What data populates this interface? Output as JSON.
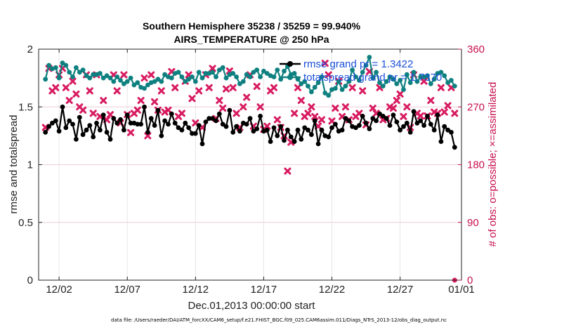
{
  "chart_data": {
    "type": "line",
    "title": "Southern Hemisphere 35238 / 35259 = 99.940%",
    "subtitle": "AIRS_TEMPERATURE @ 250 hPa",
    "xlabel": "Dec.01,2013 00:00:00 start",
    "ylabel": "rmse and totalspread",
    "y2label": "# of obs: o=possible; ×=assimilated",
    "footnote": "data file: /Users/raeder/DAI/ATM_forcXX/CAM6_setup/f.e21.FHIST_BGC.f09_025.CAM6assim.011/Diags_NTrS_2013-12/obs_diag_output.nc",
    "xlim": [
      0.5,
      31.5
    ],
    "ylim": [
      0,
      2
    ],
    "y2lim": [
      0,
      360
    ],
    "x_tick_values": [
      2,
      7,
      12,
      17,
      22,
      27,
      32
    ],
    "x_tick_labels": [
      "12/02",
      "12/07",
      "12/12",
      "12/17",
      "12/22",
      "12/27",
      "01/01"
    ],
    "y_tick_labels": [
      "0",
      "0.5",
      "1",
      "1.5",
      "2"
    ],
    "y2_tick_labels": [
      "0",
      "90",
      "180",
      "270",
      "360"
    ],
    "legend_position": "top-right",
    "colors": {
      "rmse": "#000000",
      "spread": "#0f8080",
      "obs": "#d81b60",
      "grid": "#e6e6e6",
      "rgrid": "#f2c9d6"
    },
    "x": [
      1.0,
      1.25,
      1.5,
      1.75,
      2.0,
      2.25,
      2.5,
      2.75,
      3.0,
      3.25,
      3.5,
      3.75,
      4.0,
      4.25,
      4.5,
      4.75,
      5.0,
      5.25,
      5.5,
      5.75,
      6.0,
      6.25,
      6.5,
      6.75,
      7.0,
      7.25,
      7.5,
      7.75,
      8.0,
      8.25,
      8.5,
      8.75,
      9.0,
      9.25,
      9.5,
      9.75,
      10.0,
      10.25,
      10.5,
      10.75,
      11.0,
      11.25,
      11.5,
      11.75,
      12.0,
      12.25,
      12.5,
      12.75,
      13.0,
      13.25,
      13.5,
      13.75,
      14.0,
      14.25,
      14.5,
      14.75,
      15.0,
      15.25,
      15.5,
      15.75,
      16.0,
      16.25,
      16.5,
      16.75,
      17.0,
      17.25,
      17.5,
      17.75,
      18.0,
      18.25,
      18.5,
      18.75,
      19.0,
      19.25,
      19.5,
      19.75,
      20.0,
      20.25,
      20.5,
      20.75,
      21.0,
      21.25,
      21.5,
      21.75,
      22.0,
      22.25,
      22.5,
      22.75,
      23.0,
      23.25,
      23.5,
      23.75,
      24.0,
      24.25,
      24.5,
      24.75,
      25.0,
      25.25,
      25.5,
      25.75,
      26.0,
      26.25,
      26.5,
      26.75,
      27.0,
      27.25,
      27.5,
      27.75,
      28.0,
      28.25,
      28.5,
      28.75,
      29.0,
      29.25,
      29.5,
      29.75,
      30.0,
      30.25,
      30.5,
      30.75,
      31.0
    ],
    "series": [
      {
        "name": "rmse",
        "legend_label": "rmse grand pr = 1.3422",
        "values": [
          1.28,
          1.33,
          1.36,
          1.38,
          1.29,
          1.5,
          1.32,
          1.38,
          1.35,
          1.22,
          1.41,
          1.26,
          1.3,
          1.34,
          1.24,
          1.36,
          1.3,
          1.43,
          1.28,
          1.22,
          1.4,
          1.36,
          1.39,
          1.3,
          1.43,
          1.36,
          1.36,
          1.35,
          1.35,
          1.5,
          1.28,
          1.4,
          1.34,
          1.47,
          1.25,
          1.38,
          1.35,
          1.44,
          1.36,
          1.32,
          1.3,
          1.36,
          1.32,
          1.27,
          1.27,
          1.34,
          1.18,
          1.37,
          1.4,
          1.4,
          1.38,
          1.44,
          1.35,
          1.33,
          1.47,
          1.28,
          1.33,
          1.29,
          1.36,
          1.35,
          1.4,
          1.29,
          1.31,
          1.42,
          1.29,
          1.3,
          1.2,
          1.32,
          1.25,
          1.33,
          1.21,
          1.3,
          1.24,
          1.2,
          1.3,
          1.22,
          1.32,
          1.3,
          1.26,
          1.38,
          1.18,
          1.3,
          1.25,
          1.24,
          1.32,
          1.35,
          1.29,
          1.3,
          1.4,
          1.38,
          1.33,
          1.32,
          1.34,
          1.42,
          1.36,
          1.31,
          1.4,
          1.38,
          1.44,
          1.42,
          1.4,
          1.34,
          1.43,
          1.37,
          1.3,
          1.33,
          1.36,
          1.28,
          1.46,
          1.36,
          1.38,
          1.34,
          1.42,
          1.35,
          1.3,
          1.43,
          1.2,
          1.33,
          1.3,
          1.28,
          1.15
        ]
      },
      {
        "name": "totalspread",
        "legend_label": "totalspread grand pr = 1.7370",
        "values": [
          1.74,
          1.86,
          1.83,
          1.84,
          1.75,
          1.88,
          1.86,
          1.8,
          1.76,
          1.84,
          1.8,
          1.82,
          1.77,
          1.75,
          1.78,
          1.78,
          1.79,
          1.75,
          1.77,
          1.75,
          1.72,
          1.76,
          1.73,
          1.7,
          1.72,
          1.75,
          1.69,
          1.71,
          1.67,
          1.66,
          1.69,
          1.71,
          1.72,
          1.74,
          1.72,
          1.78,
          1.76,
          1.75,
          1.79,
          1.8,
          1.76,
          1.72,
          1.74,
          1.76,
          1.72,
          1.8,
          1.75,
          1.79,
          1.79,
          1.8,
          1.76,
          1.82,
          1.84,
          1.75,
          1.78,
          1.79,
          1.76,
          1.7,
          1.72,
          1.78,
          1.76,
          1.8,
          1.82,
          1.76,
          1.81,
          1.79,
          1.77,
          1.76,
          1.82,
          1.74,
          1.81,
          1.85,
          1.78,
          1.79,
          1.74,
          1.7,
          1.72,
          1.68,
          1.63,
          1.67,
          1.71,
          1.76,
          1.62,
          1.6,
          1.65,
          1.66,
          1.72,
          1.65,
          1.68,
          1.72,
          1.82,
          1.76,
          1.73,
          1.8,
          1.86,
          1.93,
          1.75,
          1.8,
          1.71,
          1.68,
          1.72,
          1.76,
          1.74,
          1.7,
          1.73,
          1.65,
          1.78,
          1.71,
          1.8,
          1.72,
          1.76,
          1.76,
          1.77,
          1.7,
          1.74,
          1.79,
          1.8,
          1.77,
          1.71,
          1.73,
          1.68
        ]
      },
      {
        "name": "obs_assimilated",
        "axis": "right",
        "values": [
          238,
          330,
          295,
          300,
          320,
          330,
          300,
          280,
          310,
          290,
          270,
          265,
          320,
          295,
          260,
          320,
          255,
          280,
          250,
          258,
          320,
          295,
          245,
          320,
          258,
          230,
          260,
          265,
          280,
          315,
          225,
          320,
          278,
          265,
          295,
          262,
          265,
          325,
          300,
          255,
          260,
          310,
          320,
          283,
          245,
          295,
          238,
          320,
          300,
          330,
          252,
          280,
          268,
          298,
          326,
          300,
          260,
          238,
          270,
          285,
          320,
          240,
          302,
          270,
          235,
          240,
          295,
          300,
          250,
          238,
          225,
          170,
          215,
          260,
          300,
          280,
          255,
          260,
          270,
          255,
          240,
          250,
          338,
          320,
          248,
          268,
          310,
          255,
          270,
          250,
          300,
          255,
          260,
          295,
          242,
          325,
          268,
          260,
          300,
          250,
          252,
          270,
          268,
          280,
          290,
          255,
          270,
          238,
          320,
          260,
          256,
          310,
          256,
          280,
          262,
          260,
          300,
          262,
          272,
          300,
          260
        ]
      }
    ],
    "extra_points": [
      {
        "name": "obs_possible",
        "x": 31.0,
        "y2": 0
      }
    ]
  }
}
